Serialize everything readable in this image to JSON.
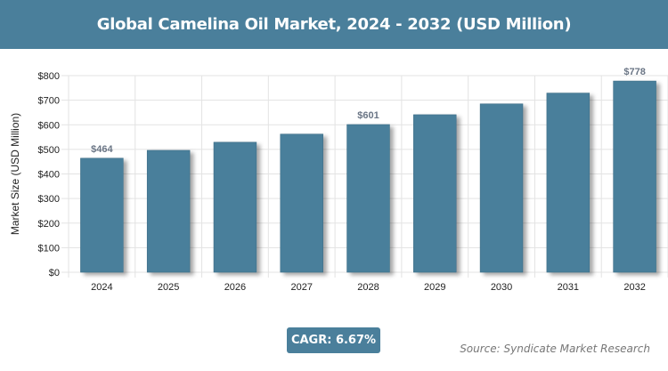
{
  "chart_data": {
    "type": "bar",
    "title": "Global Camelina Oil Market, 2024 - 2032 (USD Million)",
    "xlabel": "",
    "ylabel": "Market Size (USD Million)",
    "categories": [
      "2024",
      "2025",
      "2026",
      "2027",
      "2028",
      "2029",
      "2030",
      "2031",
      "2032"
    ],
    "values": [
      464,
      496,
      529,
      562,
      601,
      641,
      685,
      729,
      778
    ],
    "data_labels": {
      "0": "$464",
      "4": "$601",
      "8": "$778"
    },
    "ylim": [
      0,
      800
    ],
    "yticks": [
      "$0",
      "$100",
      "$200",
      "$300",
      "$400",
      "$500",
      "$600",
      "$700",
      "$800"
    ],
    "grid": true,
    "bar_color": "#4a7f9b"
  },
  "cagr": "CAGR: 6.67%",
  "source": "Source: Syndicate Market Research"
}
